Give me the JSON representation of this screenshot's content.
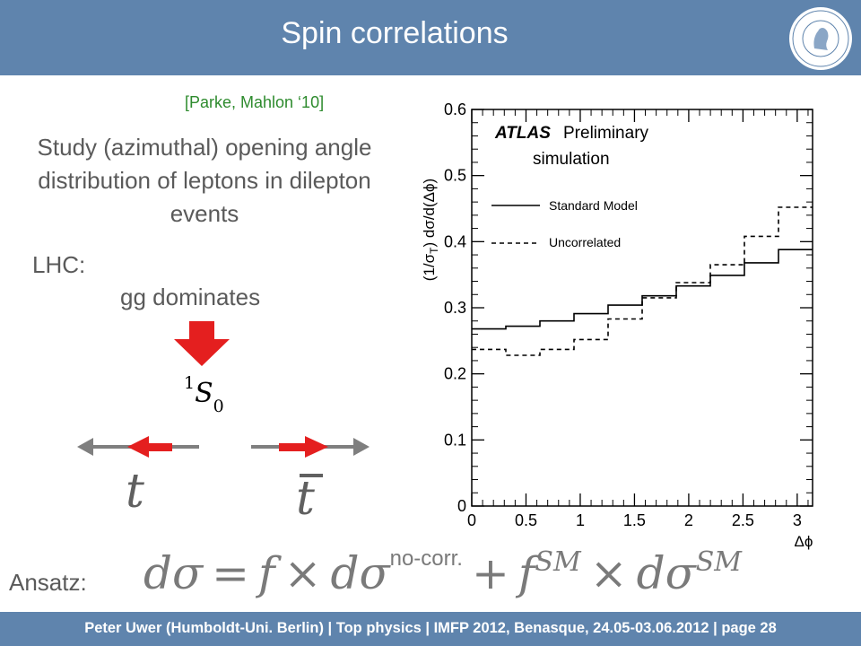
{
  "header": {
    "title": "Spin correlations"
  },
  "reference": "[Parke, Mahlon ‘10]",
  "study_text": "Study (azimuthal) opening angle distribution of leptons in dilepton events",
  "lhc_label": "LHC:",
  "gg_text": "gg dominates",
  "state": {
    "prefix": "1",
    "letter": "S",
    "sub": "0"
  },
  "quarks": {
    "top": "t",
    "antitop": "t"
  },
  "ansatz": {
    "label": "Ansatz:",
    "d_sigma": "dσ",
    "equals": "=",
    "f": "f",
    "times": "×",
    "nocorr_sup": "no-corr.",
    "plus": "+",
    "sm_sup": "SM"
  },
  "footer": {
    "text": "Peter Uwer  (Humboldt-Uni. Berlin)  |  Top physics    |  IMFP 2012, Benasque, 24.05-03.06.2012  |  page 28"
  },
  "colors": {
    "header_bg": "#5f84ad",
    "arrow_red": "#e41f1f",
    "arrow_gray": "#7f7f7f",
    "ref_green": "#2e8b2e"
  },
  "chart_data": {
    "type": "line",
    "title": "",
    "annotation_bold": "ATLAS",
    "annotation_rest": "Preliminary",
    "annotation_line2": "simulation",
    "xlabel": "Δϕ",
    "ylabel": "(1/σ",
    "ylabel_sub": "T",
    "ylabel_rest": ") dσ/d(Δϕ)",
    "xlim": [
      0,
      3.1416
    ],
    "ylim": [
      0,
      0.6
    ],
    "x_ticks": [
      "0",
      "0.5",
      "1",
      "1.5",
      "2",
      "2.5",
      "3"
    ],
    "y_ticks": [
      "0",
      "0.1",
      "0.2",
      "0.3",
      "0.4",
      "0.5",
      "0.6"
    ],
    "legend_position": "top-right",
    "bin_edges": [
      0,
      0.3142,
      0.6283,
      0.9425,
      1.2566,
      1.5708,
      1.885,
      2.1991,
      2.5133,
      2.8274,
      3.1416
    ],
    "series": [
      {
        "name": "Standard Model",
        "style": "solid",
        "values": [
          0.268,
          0.272,
          0.28,
          0.291,
          0.304,
          0.318,
          0.333,
          0.349,
          0.368,
          0.388
        ]
      },
      {
        "name": "Uncorrelated",
        "style": "dashed",
        "values": [
          0.237,
          0.228,
          0.237,
          0.252,
          0.283,
          0.315,
          0.338,
          0.365,
          0.408,
          0.452
        ]
      }
    ]
  }
}
